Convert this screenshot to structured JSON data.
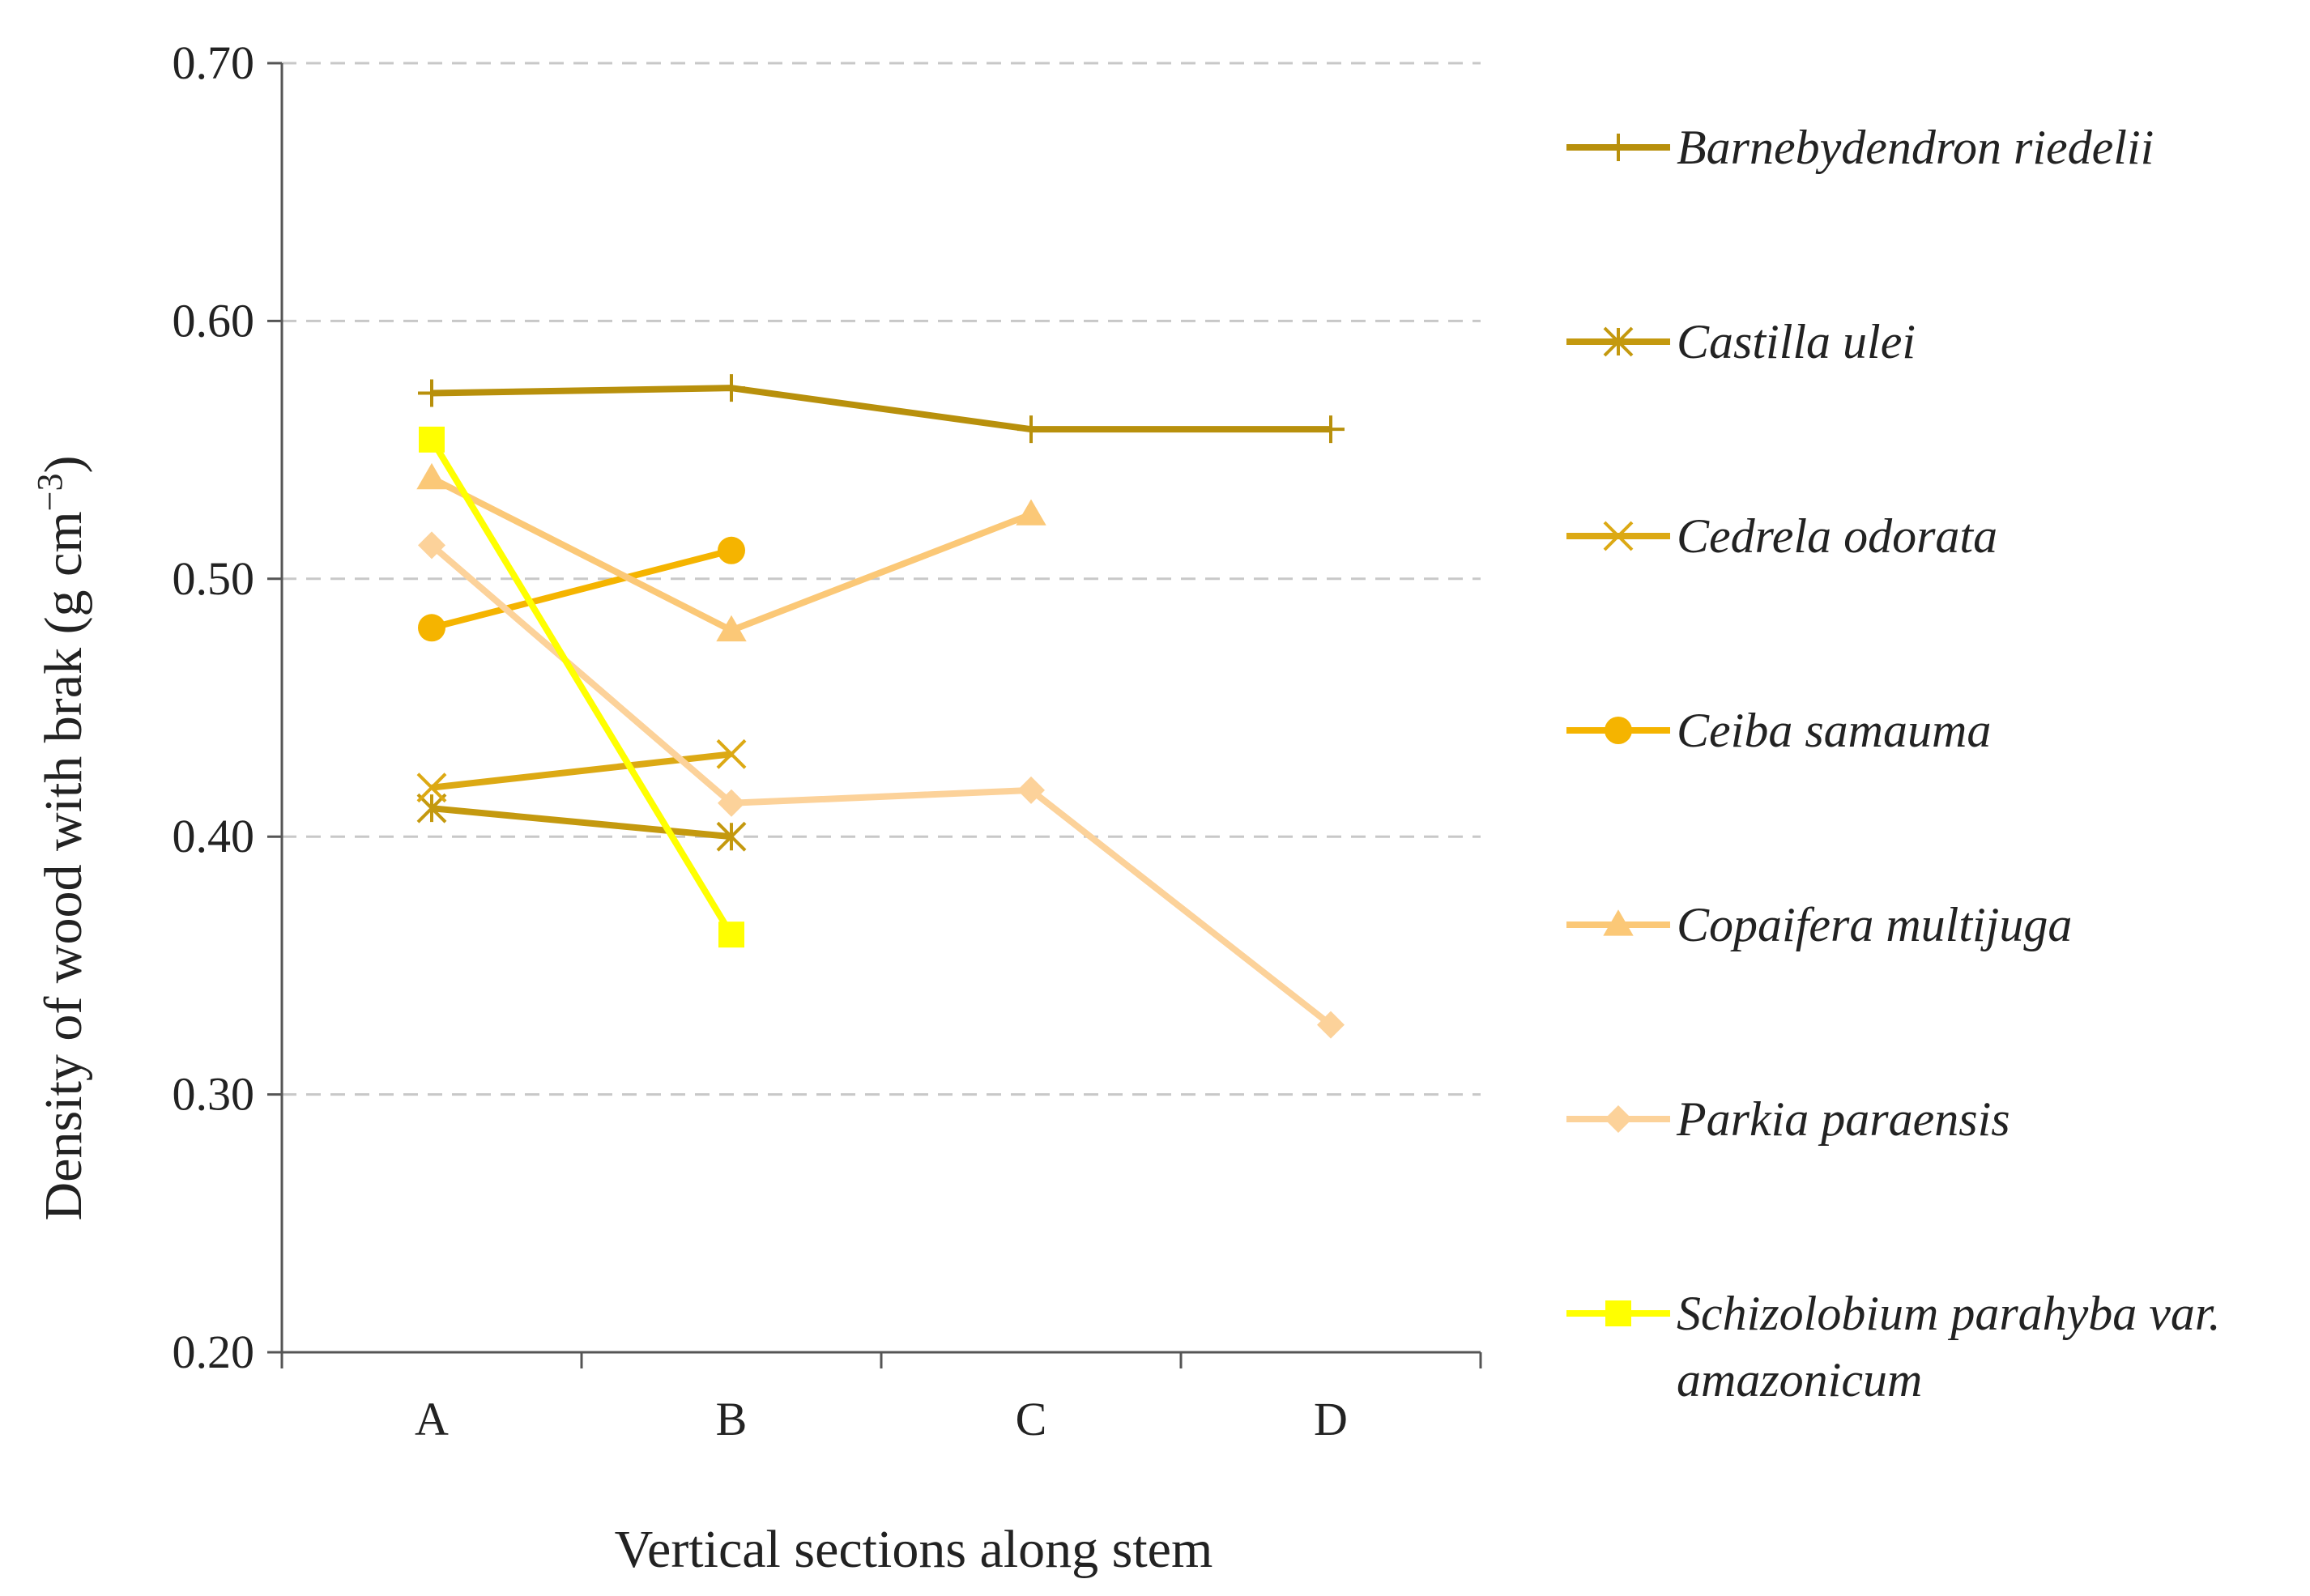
{
  "chart_data": {
    "type": "line",
    "xlabel": "Vertical sections along stem",
    "ylabel_main": "Density of wood with brak (g cm",
    "ylabel_sup": "−3",
    "ylabel_close": ")",
    "ylim": [
      0.2,
      0.7
    ],
    "yticks": [
      "0.20",
      "0.30",
      "0.40",
      "0.50",
      "0.60",
      "0.70"
    ],
    "categories": [
      "A",
      "B",
      "C",
      "D"
    ],
    "grid": "horizontal dashed",
    "legend_position": "right",
    "series": [
      {
        "name": "Barnebydendron riedelii",
        "name_lines": [
          "Barnebydendron riedelii"
        ],
        "marker": "plus",
        "color": "#b8900c",
        "values": [
          0.572,
          0.574,
          0.558,
          0.558
        ]
      },
      {
        "name": "Castilla ulei",
        "name_lines": [
          "Castilla ulei"
        ],
        "marker": "asterisk",
        "color": "#c4990f",
        "values": [
          0.411,
          0.4,
          null,
          null
        ]
      },
      {
        "name": "Cedrela odorata",
        "name_lines": [
          "Cedrela odorata"
        ],
        "marker": "x",
        "color": "#dca914",
        "values": [
          0.419,
          0.432,
          null,
          null
        ]
      },
      {
        "name": "Ceiba samauma",
        "name_lines": [
          "Ceiba samauma"
        ],
        "marker": "circle",
        "color": "#f5b400",
        "values": [
          0.481,
          0.511,
          null,
          null
        ]
      },
      {
        "name": "Copaifera multijuga",
        "name_lines": [
          "Copaifera multijuga"
        ],
        "marker": "triangle",
        "color": "#fbc877",
        "values": [
          0.539,
          0.48,
          0.525,
          null
        ]
      },
      {
        "name": "Parkia paraensis",
        "name_lines": [
          "Parkia paraensis"
        ],
        "marker": "diamond",
        "color": "#fcd29a",
        "values": [
          0.513,
          0.413,
          0.418,
          0.327
        ]
      },
      {
        "name": "Schizolobium parahyba var. amazonicum",
        "name_lines": [
          "Schizolobium parahyba var.",
          "amazonicum"
        ],
        "marker": "square",
        "color": "#ffff00",
        "values": [
          0.554,
          0.362,
          null,
          null
        ]
      }
    ]
  }
}
